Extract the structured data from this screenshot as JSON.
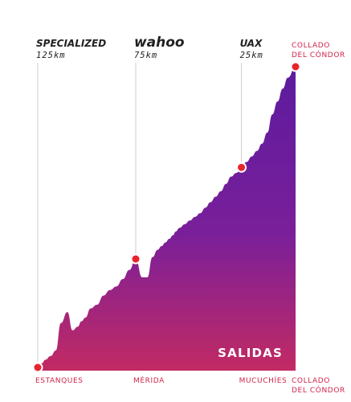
{
  "chart_data": {
    "type": "area",
    "title": "",
    "xlabel": "",
    "ylabel": "",
    "stamp": "SALIDAS",
    "x": [
      0,
      1.5,
      3,
      5,
      7,
      9,
      11.5,
      13.5,
      15.5,
      17,
      18.5,
      20.5,
      23,
      25.5,
      28,
      30.5,
      33,
      35.5,
      38,
      40.5,
      42.5,
      44.5,
      46.5,
      48,
      49.5,
      51,
      52.5,
      53.5,
      55,
      57,
      59,
      61,
      63,
      65,
      67,
      69,
      71,
      73,
      75,
      77,
      79,
      81,
      83,
      85,
      87,
      89,
      91,
      93,
      95,
      97,
      100
    ],
    "elevation": [
      3,
      4,
      6,
      8,
      11,
      26,
      32,
      22,
      24,
      27,
      29,
      34,
      36,
      41,
      44,
      46,
      50,
      55,
      61,
      51,
      51,
      62,
      66,
      68,
      70,
      72,
      74,
      76,
      78,
      80,
      82,
      84,
      86,
      89,
      92,
      95,
      98,
      102,
      106,
      108,
      111,
      114,
      117,
      120,
      124,
      130,
      140,
      147,
      154,
      160,
      166
    ],
    "ylim": [
      0,
      180
    ],
    "stops": [
      {
        "label": "ESTANQUES",
        "x": 0,
        "marker": true,
        "label_lines": [
          "ESTANQUES"
        ]
      },
      {
        "label": "MÉRIDA",
        "x": 38,
        "marker": true,
        "label_lines": [
          "MÉRIDA"
        ]
      },
      {
        "label": "MUCUCHÍES",
        "x": 79,
        "marker": true,
        "label_lines": [
          "MUCUCHÍES"
        ]
      },
      {
        "label": "COLLADO DEL CÓNDOR",
        "x": 100,
        "marker": true,
        "label_lines": [
          "COLLADO",
          "DEL CÓNDOR"
        ]
      }
    ],
    "sponsors": [
      {
        "name": "SPECIALIZED",
        "distance": "125km",
        "x": 0
      },
      {
        "name": "wahoo",
        "distance": "75km",
        "x": 38
      },
      {
        "name": "UAX",
        "distance": "25km",
        "x": 79
      }
    ],
    "top_label": [
      "COLLADO",
      "DEL CÓNDOR"
    ],
    "colors": {
      "area_top": "#5c1b9e",
      "area_mid": "#7a1f9a",
      "area_bottom": "#c22a63",
      "marker": "#e8242b",
      "marker_ring": "#ffffff",
      "guide_line": "#cfcfcf",
      "label": "#d0234a",
      "sponsor": "#222222"
    }
  }
}
